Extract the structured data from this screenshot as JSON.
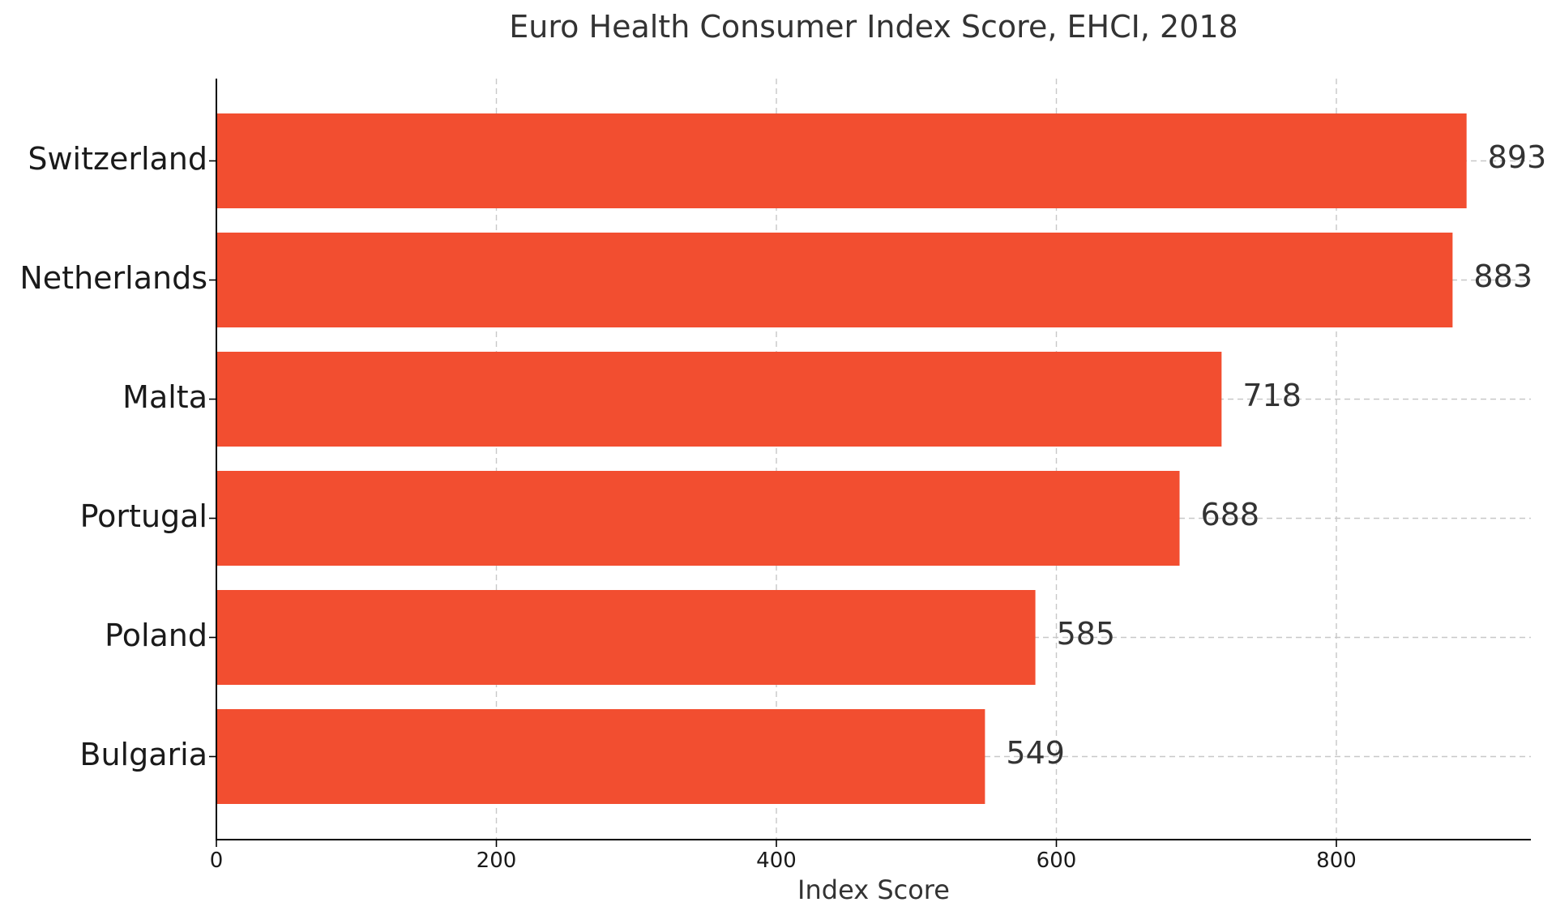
{
  "chart_data": {
    "type": "bar",
    "orientation": "horizontal",
    "title": "Euro Health Consumer Index Score, EHCI, 2018",
    "xlabel": "Index Score",
    "ylabel": "",
    "categories": [
      "Switzerland",
      "Netherlands",
      "Malta",
      "Portugal",
      "Poland",
      "Bulgaria"
    ],
    "values": [
      893,
      883,
      718,
      688,
      585,
      549
    ],
    "value_labels": [
      "893",
      "883",
      "718",
      "688",
      "585",
      "549"
    ],
    "xlim": [
      0,
      938
    ],
    "x_ticks": [
      0,
      200,
      400,
      600,
      800
    ],
    "x_tick_labels": [
      "0",
      "200",
      "400",
      "600",
      "800"
    ],
    "grid": true,
    "bar_color": "#f24e30"
  }
}
